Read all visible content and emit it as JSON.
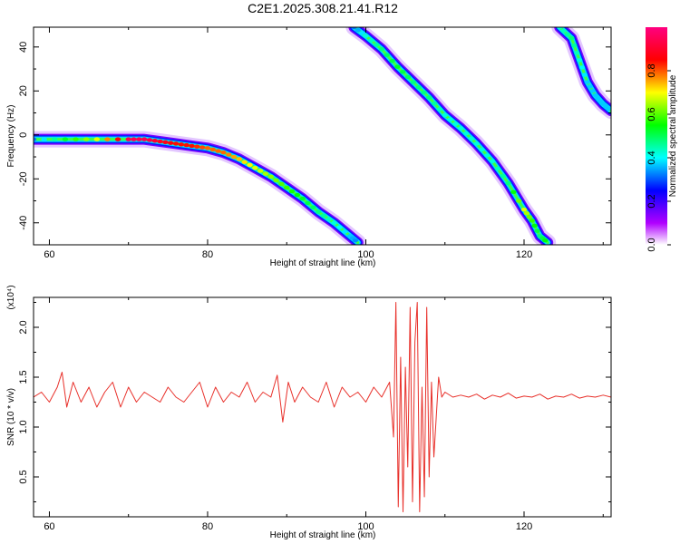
{
  "figure": {
    "title": "C2E1.2025.308.21.41.R12"
  },
  "chart_data": [
    {
      "type": "heatmap",
      "title": "C2E1.2025.308.21.41.R12",
      "xlabel": "Height of straight line (km)",
      "ylabel": "Frequency (Hz)",
      "xlim": [
        58,
        131
      ],
      "ylim": [
        -50,
        49
      ],
      "xticks": [
        60,
        80,
        100,
        120
      ],
      "yticks": [
        -40,
        -20,
        0,
        20,
        40
      ],
      "colorbar": {
        "label": "Normalized spectral amplitude",
        "range": [
          0,
          1
        ],
        "ticks": [
          "0.0",
          "0.2",
          "0.4",
          "0.6",
          "0.8"
        ],
        "colors": [
          "#ffffff",
          "#b000ff",
          "#0000ff",
          "#00ffff",
          "#00ff00",
          "#ffff00",
          "#ff0000",
          "#ff0080"
        ]
      },
      "traces": [
        {
          "name": "",
          "points": [
            [
              58,
              -2
            ],
            [
              62,
              -2
            ],
            [
              66,
              -2
            ],
            [
              70,
              -2
            ],
            [
              72,
              -2
            ],
            [
              74,
              -3
            ],
            [
              76,
              -4
            ],
            [
              78,
              -5
            ],
            [
              80,
              -6
            ],
            [
              82,
              -8
            ],
            [
              84,
              -11
            ],
            [
              86,
              -15
            ],
            [
              88,
              -19
            ],
            [
              90,
              -24
            ],
            [
              92,
              -29
            ],
            [
              94,
              -35
            ],
            [
              96,
              -40
            ],
            [
              98,
              -46
            ],
            [
              99,
              -49
            ]
          ],
          "amplitude": [
            0.35,
            0.55,
            0.7,
            0.95,
            0.95,
            0.9,
            0.85,
            0.85,
            0.8,
            0.8,
            0.75,
            0.7,
            0.65,
            0.6,
            0.55,
            0.5,
            0.45,
            0.4,
            0.35
          ]
        },
        {
          "name": "",
          "points": [
            [
              98.5,
              49
            ],
            [
              100,
              45
            ],
            [
              102,
              39
            ],
            [
              104,
              31
            ],
            [
              106,
              24
            ],
            [
              108,
              17
            ],
            [
              110,
              9
            ],
            [
              112,
              3
            ],
            [
              114,
              -4
            ],
            [
              116,
              -12
            ],
            [
              118,
              -22
            ],
            [
              120,
              -34
            ],
            [
              121,
              -39
            ],
            [
              122,
              -46
            ],
            [
              123,
              -49
            ]
          ],
          "amplitude": [
            0.35,
            0.45,
            0.5,
            0.55,
            0.5,
            0.5,
            0.45,
            0.45,
            0.45,
            0.45,
            0.5,
            0.7,
            0.6,
            0.5,
            0.6
          ]
        },
        {
          "name": "",
          "points": [
            [
              124.5,
              49
            ],
            [
              126,
              44
            ],
            [
              127,
              34
            ],
            [
              128,
              24
            ],
            [
              129,
              18
            ],
            [
              130,
              14
            ],
            [
              131,
              11
            ]
          ],
          "amplitude": [
            0.45,
            0.5,
            0.45,
            0.4,
            0.4,
            0.4,
            0.4
          ]
        }
      ]
    },
    {
      "type": "line",
      "xlabel": "Height of straight line (km)",
      "ylabel": "SNR (10 * v/v)",
      "yscale_label": "(x10⁴)",
      "xlim": [
        58,
        131
      ],
      "ylim": [
        0.1,
        2.3
      ],
      "xticks": [
        60,
        80,
        100,
        120
      ],
      "yticks": [
        0.5,
        1.0,
        1.5,
        2.0
      ],
      "series": [
        {
          "name": "",
          "color": "#e8302a",
          "x": [
            58.0,
            59.0,
            60.0,
            61.0,
            61.6,
            62.2,
            63.0,
            64.0,
            65.0,
            66.0,
            67.0,
            68.0,
            69.0,
            70.0,
            71.0,
            72.0,
            73.0,
            74.0,
            75.0,
            76.0,
            77.0,
            78.0,
            79.0,
            80.0,
            81.0,
            82.0,
            83.0,
            84.0,
            85.0,
            86.0,
            87.0,
            88.0,
            88.8,
            89.5,
            90.2,
            91.0,
            92.0,
            93.0,
            94.0,
            95.0,
            96.0,
            97.0,
            98.0,
            99.0,
            100.0,
            101.0,
            102.0,
            103.0,
            103.5,
            103.8,
            104.1,
            104.4,
            104.7,
            105.0,
            105.3,
            105.6,
            105.9,
            106.2,
            106.5,
            106.8,
            107.1,
            107.4,
            107.7,
            108.0,
            108.3,
            108.6,
            108.9,
            109.2,
            109.6,
            110.0,
            111.0,
            112.0,
            113.0,
            114.0,
            115.0,
            116.0,
            117.0,
            118.0,
            119.0,
            120.0,
            121.0,
            122.0,
            123.0,
            124.0,
            125.0,
            126.0,
            127.0,
            128.0,
            129.0,
            130.0,
            131.0
          ],
          "values": [
            1.3,
            1.35,
            1.25,
            1.4,
            1.55,
            1.2,
            1.45,
            1.25,
            1.4,
            1.2,
            1.35,
            1.45,
            1.2,
            1.4,
            1.25,
            1.35,
            1.3,
            1.25,
            1.4,
            1.3,
            1.25,
            1.35,
            1.45,
            1.2,
            1.4,
            1.25,
            1.35,
            1.3,
            1.45,
            1.25,
            1.35,
            1.3,
            1.52,
            1.05,
            1.45,
            1.25,
            1.4,
            1.3,
            1.25,
            1.45,
            1.2,
            1.4,
            1.3,
            1.35,
            1.25,
            1.4,
            1.3,
            1.45,
            0.9,
            2.25,
            0.2,
            1.7,
            0.15,
            1.6,
            0.6,
            2.2,
            0.25,
            1.85,
            2.25,
            0.15,
            1.4,
            0.3,
            2.2,
            0.5,
            1.45,
            0.7,
            1.1,
            1.5,
            1.3,
            1.35,
            1.3,
            1.32,
            1.3,
            1.33,
            1.28,
            1.32,
            1.3,
            1.34,
            1.29,
            1.31,
            1.3,
            1.33,
            1.28,
            1.31,
            1.3,
            1.33,
            1.29,
            1.31,
            1.3,
            1.32,
            1.3
          ]
        }
      ]
    }
  ]
}
